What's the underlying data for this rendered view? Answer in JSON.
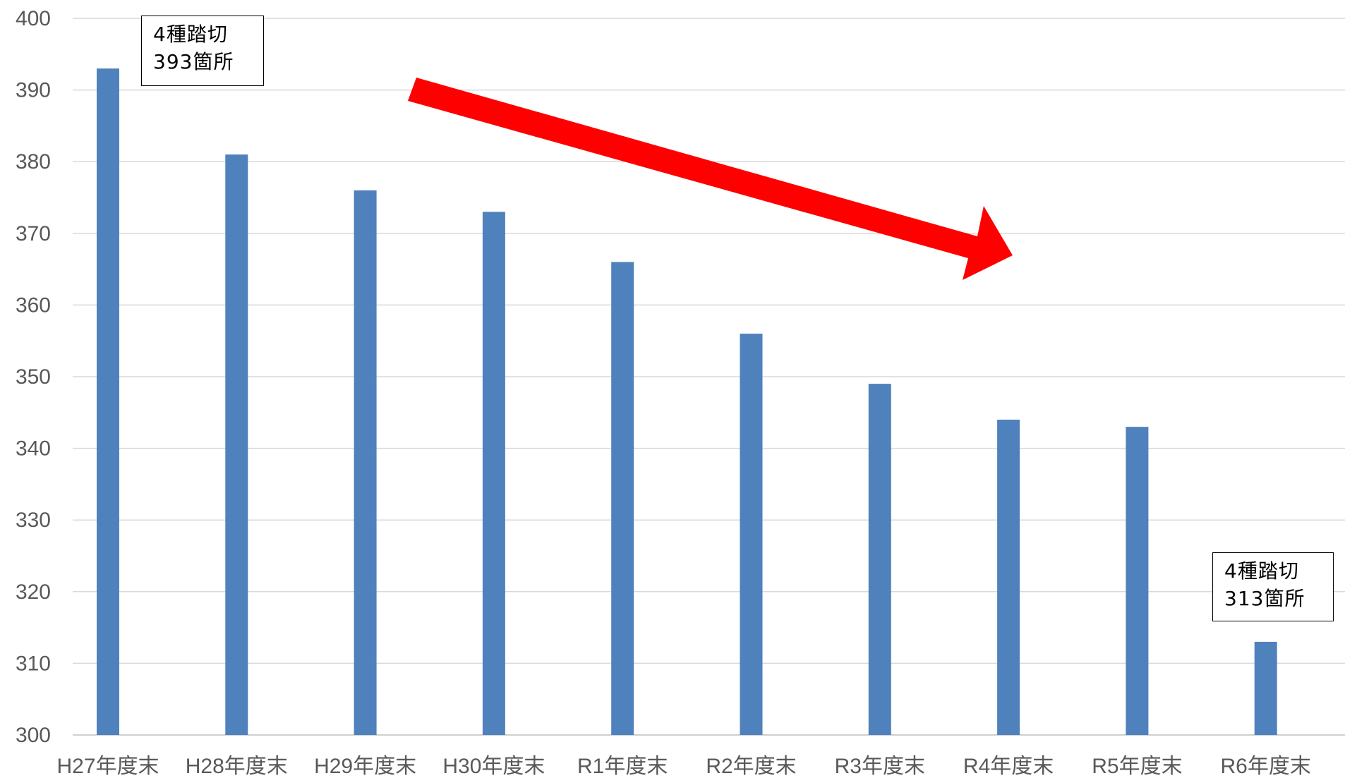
{
  "chart_data": {
    "type": "bar",
    "categories": [
      "H27年度末",
      "H28年度末",
      "H29年度末",
      "H30年度末",
      "R1年度末",
      "R2年度末",
      "R3年度末",
      "R4年度末",
      "R5年度末",
      "R6年度末"
    ],
    "values": [
      393,
      381,
      376,
      373,
      366,
      356,
      349,
      344,
      343,
      313
    ],
    "ylim": [
      300,
      400
    ],
    "yticks": [
      "300",
      "310",
      "320",
      "330",
      "340",
      "350",
      "360",
      "370",
      "380",
      "390",
      "400"
    ],
    "grid": true,
    "bar_color": "#4F81BD",
    "trend_arrow_color": "#FF0000",
    "annotations": [
      {
        "line1": "4種踏切",
        "line2": "393箇所",
        "category": "H27年度末"
      },
      {
        "line1": "4種踏切",
        "line2": "313箇所",
        "category": "R6年度末"
      }
    ]
  }
}
